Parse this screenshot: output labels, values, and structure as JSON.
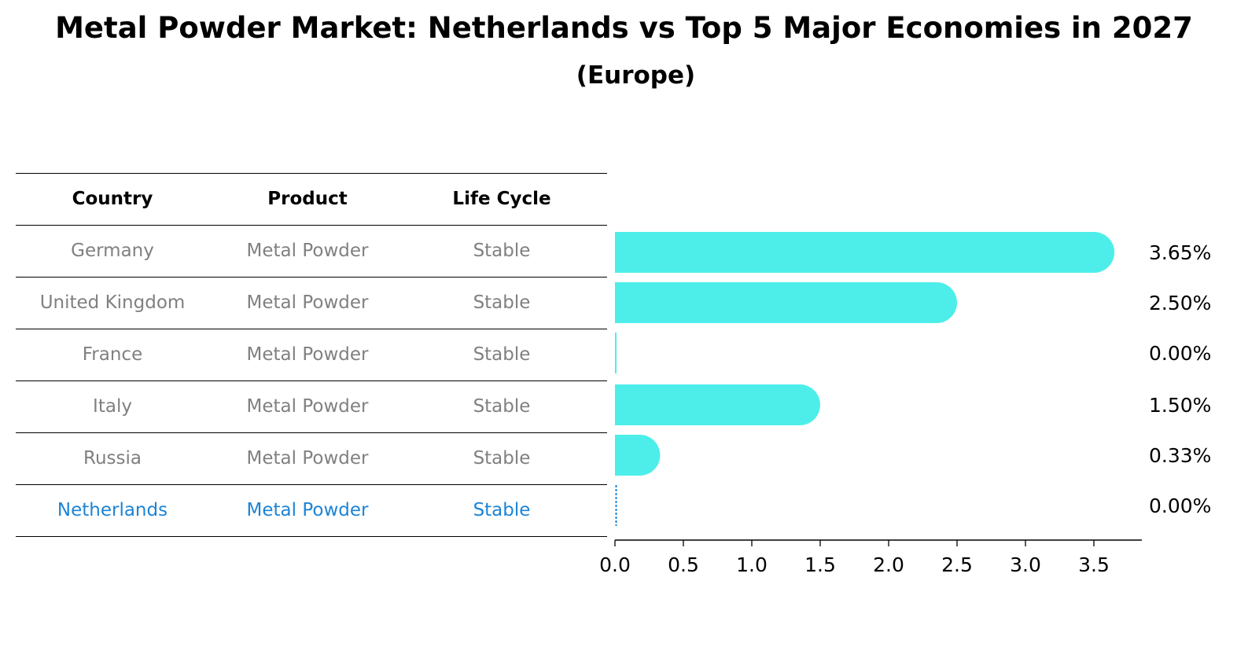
{
  "title": "Metal Powder Market: Netherlands vs Top 5 Major Economies in 2027",
  "subtitle": "(Europe)",
  "table": {
    "headers": [
      "Country",
      "Product",
      "Life Cycle"
    ],
    "rows": [
      {
        "country": "Germany",
        "product": "Metal Powder",
        "life_cycle": "Stable"
      },
      {
        "country": "United Kingdom",
        "product": "Metal Powder",
        "life_cycle": "Stable"
      },
      {
        "country": "France",
        "product": "Metal Powder",
        "life_cycle": "Stable"
      },
      {
        "country": "Italy",
        "product": "Metal Powder",
        "life_cycle": "Stable"
      },
      {
        "country": "Russia",
        "product": "Metal Powder",
        "life_cycle": "Stable"
      },
      {
        "country": "Netherlands",
        "product": "Metal Powder",
        "life_cycle": "Stable"
      }
    ],
    "highlight_row": 5
  },
  "chart_data": {
    "type": "bar",
    "orientation": "horizontal",
    "categories": [
      "Germany",
      "United Kingdom",
      "France",
      "Italy",
      "Russia",
      "Netherlands"
    ],
    "values": [
      3.65,
      2.5,
      0.0,
      1.5,
      0.33,
      0.0
    ],
    "value_labels": [
      "3.65%",
      "2.50%",
      "0.00%",
      "1.50%",
      "0.33%",
      "0.00%"
    ],
    "xlim": [
      0,
      3.85
    ],
    "xticks": [
      0.0,
      0.5,
      1.0,
      1.5,
      2.0,
      2.5,
      3.0,
      3.5
    ],
    "xtick_labels": [
      "0.0",
      "0.5",
      "1.0",
      "1.5",
      "2.0",
      "2.5",
      "3.0",
      "3.5"
    ],
    "xlabel": "",
    "ylabel": "",
    "grid": false,
    "bar_color": "#4deeea",
    "highlight_color": "#1c84d6"
  }
}
